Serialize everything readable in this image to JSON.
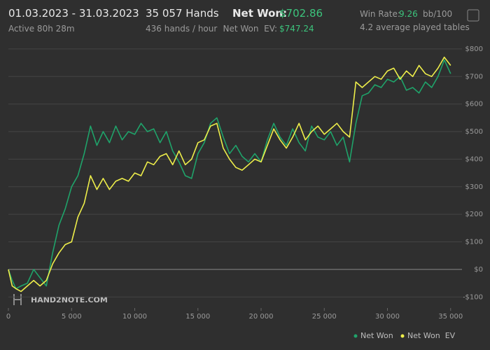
{
  "header": {
    "date_range": "01.03.2023 - 31.03.2023",
    "active": "Active 80h 28m",
    "hands": "35 057 Hands",
    "rate": "436 hands / hour",
    "net_won_label": "Net Won:",
    "net_won_value": "$702.86",
    "ev_label": "Net Won  EV:",
    "ev_value": "$747.24",
    "win_rate_label": "Win Rate:",
    "win_rate_value": "9.26",
    "win_rate_unit": "bb/100",
    "tables": "4.2 average played tables"
  },
  "watermark": "HAND2NOTE.COM",
  "chart_data": {
    "type": "line",
    "x": [
      0,
      300,
      600,
      1000,
      1500,
      2000,
      2500,
      3000,
      3500,
      4000,
      4500,
      5000,
      5500,
      6000,
      6500,
      7000,
      7500,
      8000,
      8500,
      9000,
      9500,
      10000,
      10500,
      11000,
      11500,
      12000,
      12500,
      13000,
      13500,
      14000,
      14500,
      15000,
      15500,
      16000,
      16500,
      17000,
      17500,
      18000,
      18500,
      19000,
      19500,
      20000,
      20500,
      21000,
      21500,
      22000,
      22500,
      23000,
      23500,
      24000,
      24500,
      25000,
      25500,
      26000,
      26500,
      27000,
      27500,
      28000,
      28500,
      29000,
      29500,
      30000,
      30500,
      31000,
      31500,
      32000,
      32500,
      33000,
      33500,
      34000,
      34500,
      35000
    ],
    "series": [
      {
        "name": "Net Won",
        "color": "#1fa36a",
        "values": [
          0,
          -40,
          -70,
          -60,
          -50,
          0,
          -30,
          -60,
          60,
          160,
          220,
          300,
          340,
          420,
          520,
          450,
          500,
          460,
          520,
          470,
          500,
          490,
          530,
          500,
          510,
          460,
          500,
          430,
          390,
          340,
          330,
          420,
          460,
          530,
          550,
          480,
          420,
          450,
          410,
          390,
          420,
          390,
          470,
          530,
          480,
          450,
          510,
          460,
          430,
          520,
          480,
          470,
          500,
          450,
          480,
          390,
          530,
          630,
          640,
          670,
          660,
          690,
          680,
          700,
          650,
          660,
          640,
          680,
          660,
          700,
          760,
          710
        ]
      },
      {
        "name": "Net Won  EV",
        "color": "#eeee4a",
        "values": [
          0,
          -60,
          -70,
          -80,
          -60,
          -40,
          -60,
          -40,
          20,
          60,
          90,
          100,
          190,
          240,
          340,
          290,
          330,
          290,
          320,
          330,
          320,
          350,
          340,
          390,
          380,
          410,
          420,
          380,
          430,
          380,
          400,
          460,
          470,
          520,
          530,
          440,
          400,
          370,
          360,
          380,
          400,
          390,
          450,
          510,
          470,
          440,
          480,
          530,
          470,
          500,
          520,
          490,
          510,
          530,
          500,
          480,
          680,
          660,
          680,
          700,
          690,
          720,
          730,
          690,
          720,
          700,
          740,
          710,
          700,
          730,
          770,
          740
        ]
      }
    ],
    "xlim": [
      0,
      35900
    ],
    "ylim": [
      -140,
      820
    ],
    "xticks": [
      0,
      {
        "value": 5000,
        "label": "5 000"
      },
      {
        "value": 10000,
        "label": "10 000"
      },
      {
        "value": 15000,
        "label": "15 000"
      },
      {
        "value": 20000,
        "label": "20 000"
      },
      {
        "value": 25000,
        "label": "25 000"
      },
      {
        "value": 30000,
        "label": "30 000"
      },
      {
        "value": 35000,
        "label": "35 000"
      }
    ],
    "yticks": [
      {
        "value": -100,
        "label": "-$100"
      },
      {
        "value": 0,
        "label": "$0"
      },
      {
        "value": 100,
        "label": "$100"
      },
      {
        "value": 200,
        "label": "$200"
      },
      {
        "value": 300,
        "label": "$300"
      },
      {
        "value": 400,
        "label": "$400"
      },
      {
        "value": 500,
        "label": "$500"
      },
      {
        "value": 600,
        "label": "$600"
      },
      {
        "value": 700,
        "label": "$700"
      },
      {
        "value": 800,
        "label": "$800"
      }
    ],
    "grid": true
  }
}
